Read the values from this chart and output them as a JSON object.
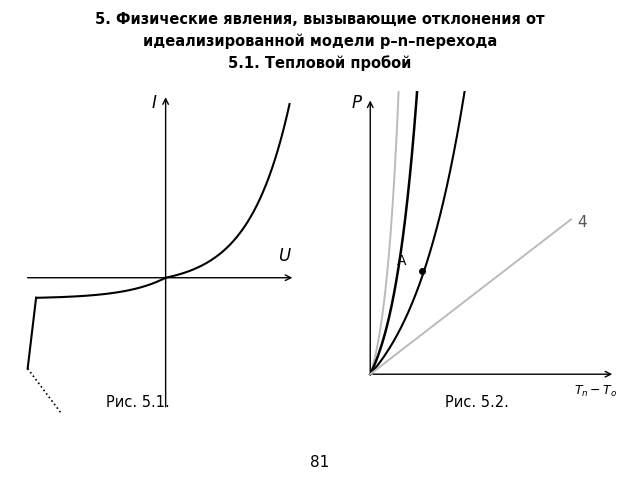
{
  "title_line1": "5. Физические явления, вызывающие отклонения от",
  "title_line2": "идеализированной модели p–n–перехода",
  "title_line3": "5.1. Тепловой пробой",
  "fig1_caption": "Рис. 5.1.",
  "fig2_caption": "Рис. 5.2.",
  "page_number": "81",
  "background_color": "#ffffff"
}
